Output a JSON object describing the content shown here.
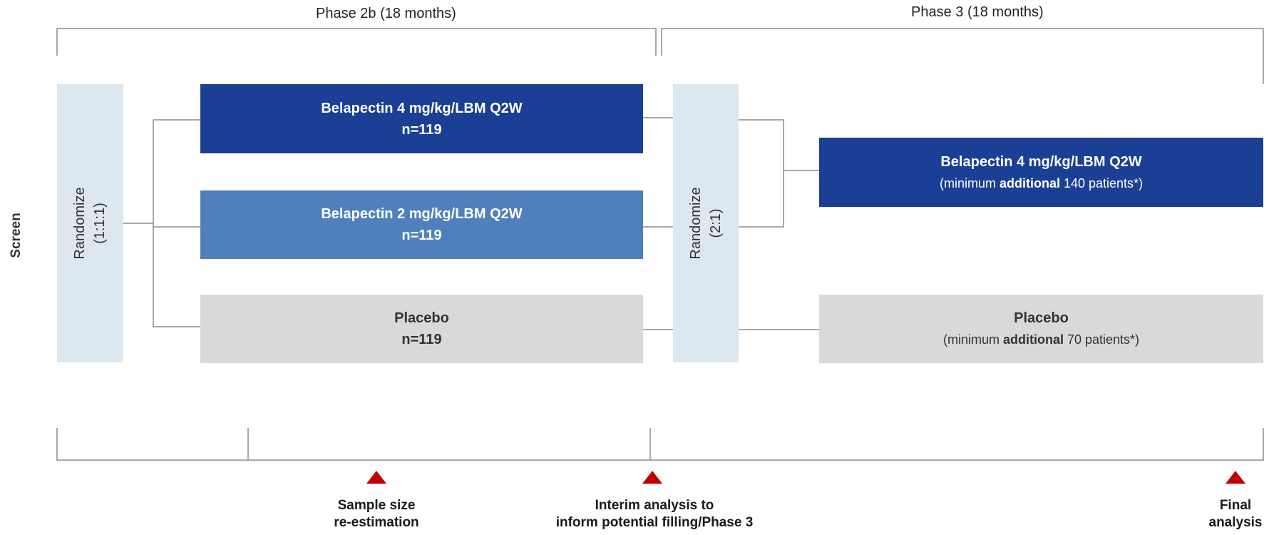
{
  "phases": {
    "phase2b_label": "Phase 2b (18 months)",
    "phase3_label": "Phase 3 (18 months)"
  },
  "screen_label": "Screen",
  "randomize_1": {
    "title": "Randomize",
    "ratio": "(1:1:1)"
  },
  "randomize_2": {
    "title": "Randomize",
    "ratio": "(2:1)"
  },
  "phase2b_arms": {
    "high_dose": {
      "name": "Belapectin 4 mg/kg/LBM  Q2W",
      "n": "n=119"
    },
    "low_dose": {
      "name": "Belapectin 2 mg/kg/LBM  Q2W",
      "n": "n=119"
    },
    "placebo": {
      "name": "Placebo",
      "n": "n=119"
    }
  },
  "phase3_arms": {
    "high_dose": {
      "name": "Belapectin 4 mg/kg/LBM  Q2W",
      "pre": "(minimum ",
      "bold": "additional",
      "post": " 140 patients*)"
    },
    "placebo": {
      "name": "Placebo",
      "pre": "(minimum ",
      "bold": "additional",
      "post": " 70 patients*)"
    }
  },
  "milestones": {
    "sample_size": {
      "line1": "Sample size",
      "line2": "re-estimation"
    },
    "interim": {
      "line1": "Interim analysis to",
      "line2": "inform potential filling/Phase  3"
    },
    "final": {
      "line1": "Final",
      "line2": "analysis"
    }
  },
  "colors": {
    "dark_blue": "#1a3f94",
    "mid_blue": "#4f80bd",
    "light_blue": "#dde7f0",
    "grey": "#d9d9d9",
    "marker_red": "#c00000"
  }
}
